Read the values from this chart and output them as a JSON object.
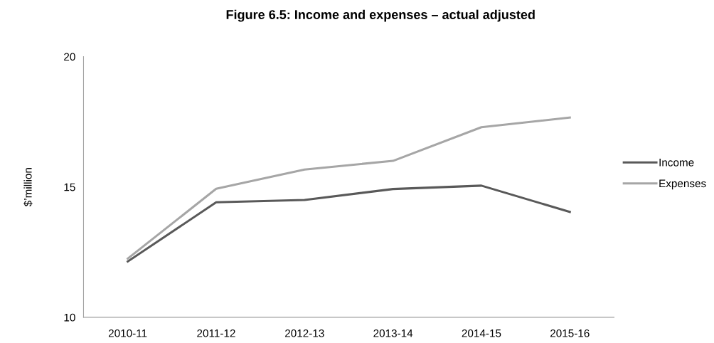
{
  "chart_data": {
    "type": "line",
    "title": "Figure 6.5: Income and expenses – actual adjusted",
    "ylabel": "$’million",
    "categories": [
      "2010-11",
      "2011-12",
      "2012-13",
      "2013-14",
      "2014-15",
      "2015-16"
    ],
    "series": [
      {
        "name": "Income",
        "color": "#595959",
        "values": [
          12.14,
          14.41,
          14.5,
          14.92,
          15.05,
          14.04
        ]
      },
      {
        "name": "Expenses",
        "color": "#a6a6a6",
        "values": [
          12.25,
          14.93,
          15.67,
          16.0,
          17.29,
          17.66
        ]
      }
    ],
    "ylim": [
      10,
      20
    ],
    "yticks": [
      10,
      15,
      20
    ],
    "grid": false,
    "legend": "right",
    "marker": "none",
    "line_style": "solid"
  }
}
